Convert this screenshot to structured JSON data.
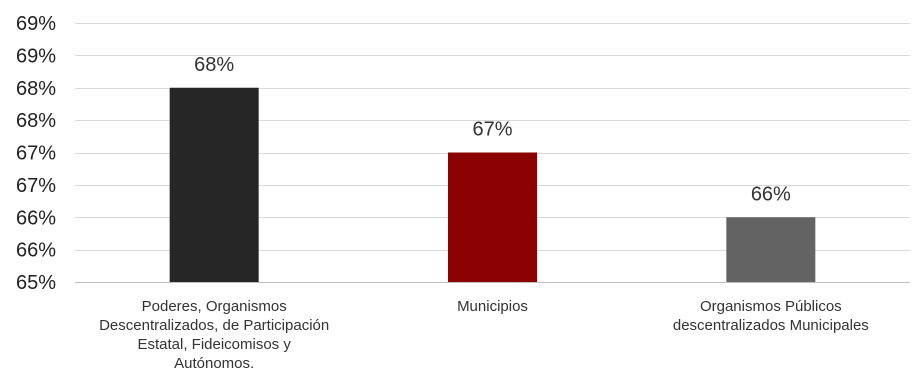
{
  "chart_data": {
    "type": "bar",
    "categories": [
      "Poderes, Organismos Descentralizados, de Participación Estatal, Fideicomisos y Autónomos.",
      "Municipios",
      "Organismos Públicos descentralizados Municipales"
    ],
    "category_lines": [
      [
        "Poderes, Organismos",
        "Descentralizados, de Participación",
        "Estatal, Fideicomisos y",
        "Autónomos."
      ],
      [
        "Municipios"
      ],
      [
        "Organismos Públicos",
        "descentralizados Municipales"
      ]
    ],
    "values": [
      68.0,
      67.0,
      66.0
    ],
    "data_labels": [
      "68%",
      "67%",
      "66%"
    ],
    "bar_colors": [
      "#262626",
      "#8b0000",
      "#636363"
    ],
    "ylim": [
      65.0,
      69.0
    ],
    "y_ticks": [
      65.0,
      65.5,
      66.0,
      66.5,
      67.0,
      67.5,
      68.0,
      68.5,
      69.0
    ],
    "y_tick_labels": [
      "65%",
      "66%",
      "66%",
      "67%",
      "67%",
      "68%",
      "68%",
      "69%",
      "69%"
    ],
    "title": "",
    "xlabel": "",
    "ylabel": "",
    "grid": true,
    "legend": "none"
  }
}
